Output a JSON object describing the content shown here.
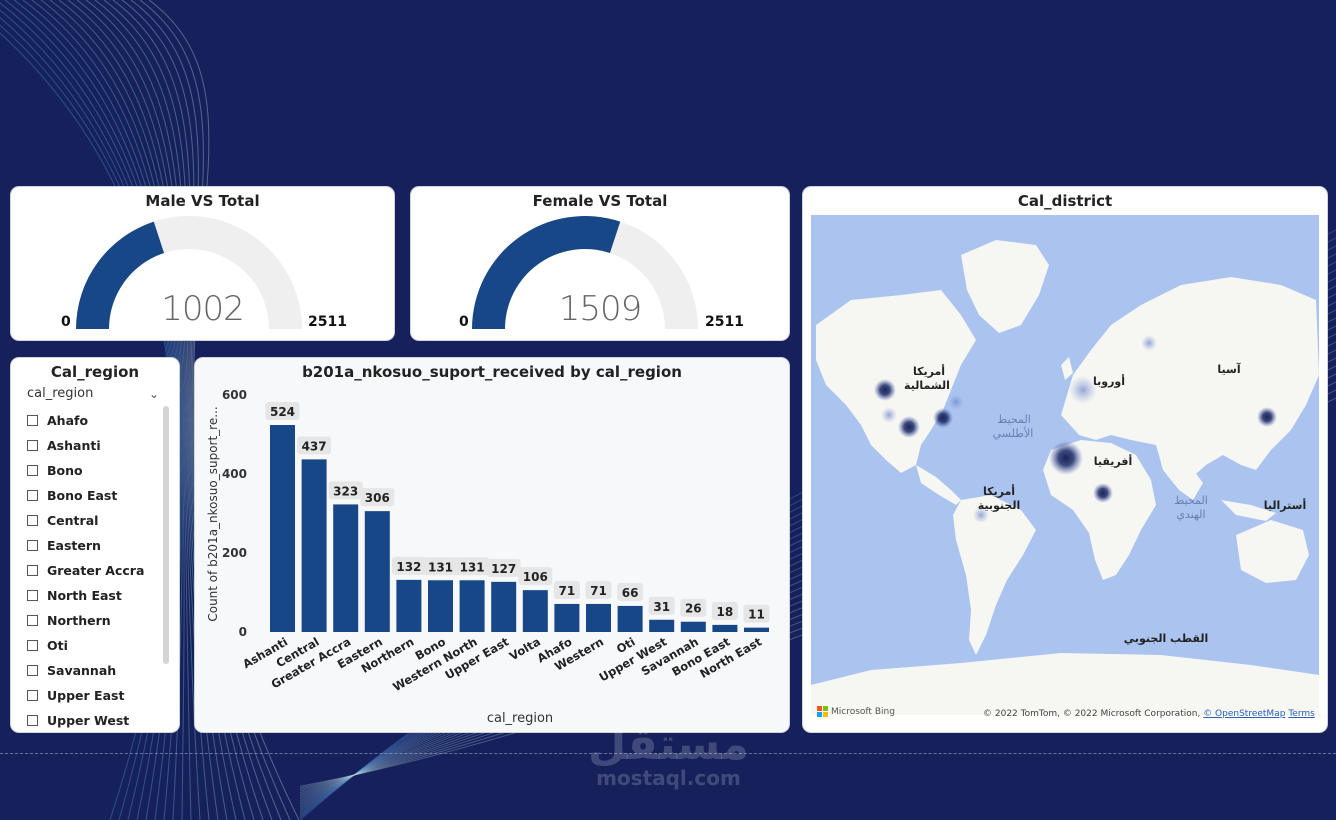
{
  "gauges": {
    "male": {
      "title": "Male VS Total",
      "value": 1002,
      "value_text": "1002",
      "min": "0",
      "max": "2511",
      "max_num": 2511
    },
    "female": {
      "title": "Female VS Total",
      "value": 1509,
      "value_text": "1509",
      "min": "0",
      "max": "2511",
      "max_num": 2511
    }
  },
  "map": {
    "title": "Cal_district",
    "labels": {
      "north_america": [
        "أمريكا",
        "الشمالية"
      ],
      "europe": "أوروبا",
      "asia": "آسيا",
      "atlantic": [
        "المحيط",
        "الأطلسي"
      ],
      "africa": "أفريقيا",
      "south_america": [
        "أمريكا",
        "الجنوبية"
      ],
      "indian": [
        "المحيط",
        "الهندي"
      ],
      "australia": "أستراليا",
      "antarctica": "القطب الجنوبي"
    },
    "bing": "Microsoft Bing",
    "copyright": "© 2022 TomTom, © 2022 Microsoft Corporation,",
    "osm_link": "© OpenStreetMap",
    "terms_link": "Terms"
  },
  "slicer": {
    "title": "Cal_region",
    "header": "cal_region",
    "items": [
      "Ahafo",
      "Ashanti",
      "Bono",
      "Bono East",
      "Central",
      "Eastern",
      "Greater Accra",
      "North East",
      "Northern",
      "Oti",
      "Savannah",
      "Upper East",
      "Upper West"
    ]
  },
  "chart_title": "b201a_nkosuo_suport_received by cal_region",
  "chart_data": {
    "type": "bar",
    "title": "b201a_nkosuo_suport_received by cal_region",
    "xlabel": "cal_region",
    "ylabel": "Count of b201a_nkosuo_suport_re...",
    "categories": [
      "Ashanti",
      "Central",
      "Greater Accra",
      "Eastern",
      "Northern",
      "Bono",
      "Western North",
      "Upper East",
      "Volta",
      "Ahafo",
      "Western",
      "Oti",
      "Upper West",
      "Savannah",
      "Bono East",
      "North East"
    ],
    "values": [
      524,
      437,
      323,
      306,
      132,
      131,
      131,
      127,
      106,
      71,
      71,
      66,
      31,
      26,
      18,
      11
    ],
    "ylim": [
      0,
      600
    ],
    "yticks": [
      0,
      200,
      400,
      600
    ],
    "data_labels": true,
    "color": "#174787"
  },
  "colors": {
    "background": "#16215c",
    "accent": "#174787",
    "gauge_track": "#efefef"
  },
  "watermark": {
    "arabic": "مستقل",
    "latin": "mostaql.com"
  }
}
